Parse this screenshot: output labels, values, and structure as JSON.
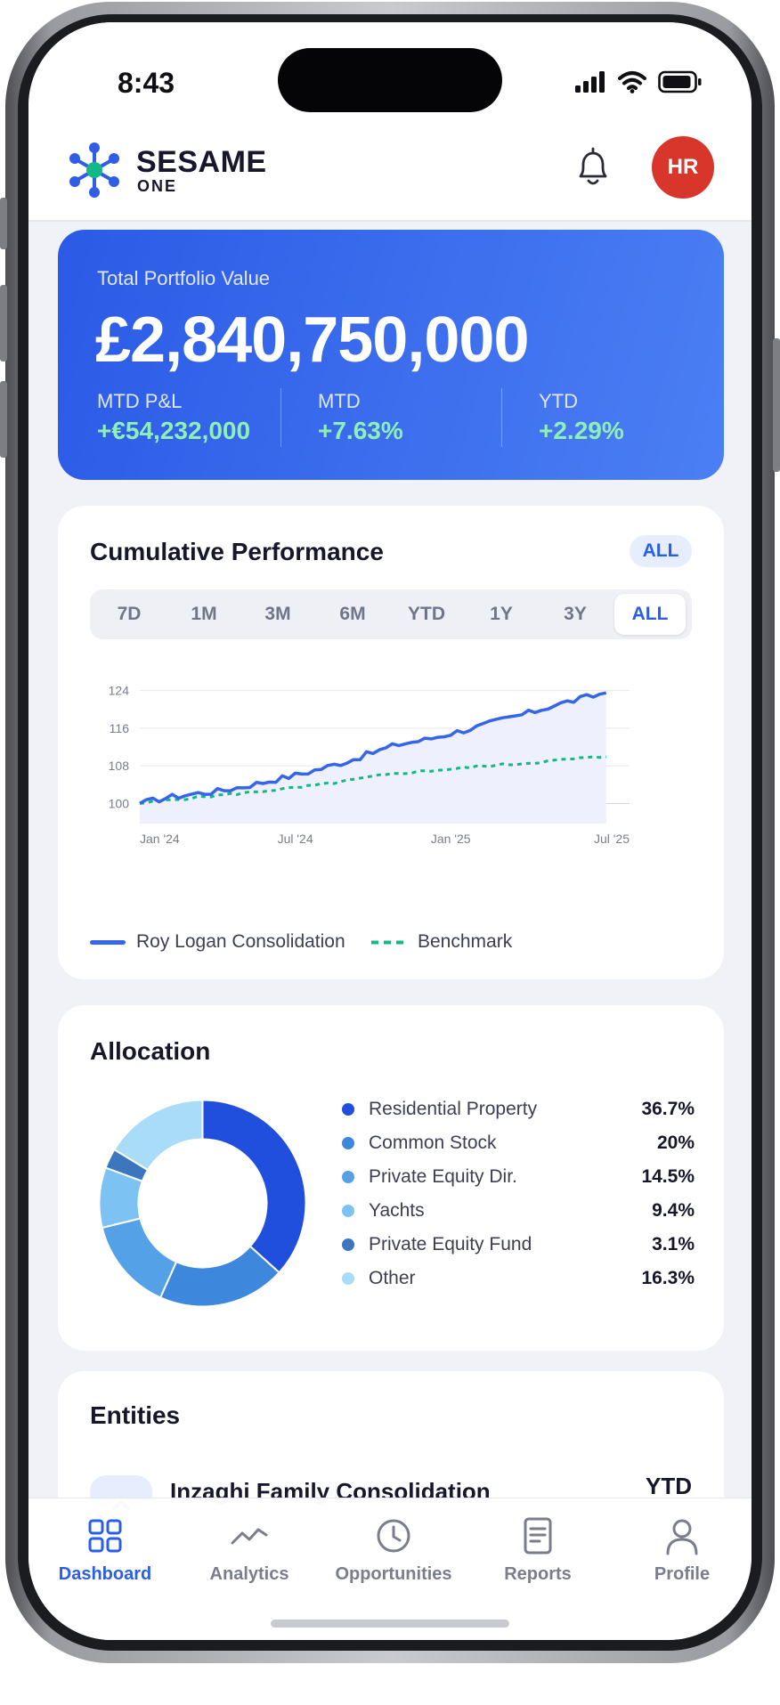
{
  "status": {
    "time": "8:43"
  },
  "header": {
    "brand": "SESAME",
    "brand_sub": "ONE",
    "avatar_initials": "HR"
  },
  "portfolio": {
    "label": "Total Portfolio Value",
    "value": "£2,840,750,000",
    "stats": [
      {
        "label": "MTD P&L",
        "value": "+€54,232,000"
      },
      {
        "label": "MTD",
        "value": "+7.63%"
      },
      {
        "label": "YTD",
        "value": "+2.29%"
      }
    ]
  },
  "performance": {
    "title": "Cumulative Performance",
    "badge": "ALL",
    "ranges": [
      "7D",
      "1M",
      "3M",
      "6M",
      "YTD",
      "1Y",
      "3Y",
      "ALL"
    ],
    "selected_range": "ALL",
    "legend": [
      "Roy Logan Consolidation",
      "Benchmark"
    ],
    "colors": {
      "portfolio": "#3566ea",
      "benchmark": "#12b886",
      "fill": "#eef1fd"
    }
  },
  "chart_data": {
    "type": "line",
    "title": "",
    "xlabel": "",
    "ylabel": "",
    "x_tick_labels": [
      "Jan '24",
      "Jul '24",
      "Jan '25",
      "Jul '25"
    ],
    "y_ticks": [
      100,
      108,
      116,
      124
    ],
    "ylim": [
      98,
      126
    ],
    "xlim": [
      "2024-01-01",
      "2025-07-31"
    ],
    "grid": true,
    "legend_position": "bottom",
    "series": [
      {
        "name": "Roy Logan Consolidation",
        "style": "solid",
        "x": [
          "2024-01",
          "2024-02",
          "2024-03",
          "2024-04",
          "2024-05",
          "2024-06",
          "2024-07",
          "2024-08",
          "2024-09",
          "2024-10",
          "2024-11",
          "2024-12",
          "2025-01",
          "2025-02",
          "2025-03",
          "2025-04",
          "2025-05",
          "2025-06",
          "2025-07"
        ],
        "values": [
          100.0,
          101.2,
          102.0,
          102.6,
          103.6,
          104.8,
          106.0,
          107.4,
          109.0,
          110.8,
          112.6,
          113.5,
          114.9,
          116.2,
          117.8,
          119.2,
          120.9,
          122.2,
          123.5
        ]
      },
      {
        "name": "Benchmark",
        "style": "dashed",
        "x": [
          "2024-01",
          "2024-02",
          "2024-03",
          "2024-04",
          "2024-05",
          "2024-06",
          "2024-07",
          "2024-08",
          "2024-09",
          "2024-10",
          "2024-11",
          "2024-12",
          "2025-01",
          "2025-02",
          "2025-03",
          "2025-04",
          "2025-05",
          "2025-06",
          "2025-07"
        ],
        "values": [
          100.0,
          100.6,
          101.2,
          101.7,
          102.2,
          102.8,
          103.3,
          104.0,
          104.8,
          105.7,
          106.4,
          106.9,
          107.3,
          107.8,
          108.2,
          108.6,
          109.1,
          109.6,
          109.9
        ]
      }
    ]
  },
  "allocation": {
    "title": "Allocation",
    "items": [
      {
        "label": "Residential Property",
        "pct": "36.7%",
        "value": 36.7,
        "color": "#1f4fdc"
      },
      {
        "label": "Common Stock",
        "pct": "20%",
        "value": 20.0,
        "color": "#3d88dd"
      },
      {
        "label": "Private Equity Dir.",
        "pct": "14.5%",
        "value": 14.5,
        "color": "#54a1e8"
      },
      {
        "label": "Yachts",
        "pct": "9.4%",
        "value": 9.4,
        "color": "#7cc3f4"
      },
      {
        "label": "Private Equity Fund",
        "pct": "3.1%",
        "value": 3.1,
        "color": "#3c76bf"
      },
      {
        "label": "Other",
        "pct": "16.3%",
        "value": 16.3,
        "color": "#a8dcf8"
      }
    ]
  },
  "entities": {
    "title": "Entities",
    "first": {
      "name": "Inzaghi Family Consolidation",
      "column": "YTD"
    }
  },
  "tabs": [
    {
      "label": "Dashboard",
      "icon": "grid-icon",
      "active": true
    },
    {
      "label": "Analytics",
      "icon": "trend-icon",
      "active": false
    },
    {
      "label": "Opportunities",
      "icon": "clock-icon",
      "active": false
    },
    {
      "label": "Reports",
      "icon": "document-icon",
      "active": false
    },
    {
      "label": "Profile",
      "icon": "person-icon",
      "active": false
    }
  ]
}
